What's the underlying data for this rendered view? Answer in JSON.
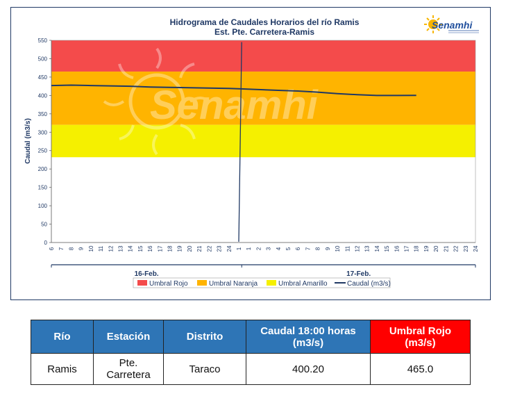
{
  "logo": {
    "text": "Senamhi"
  },
  "watermark": {
    "text": "Senamhi"
  },
  "chart_data": {
    "type": "line",
    "title": "Hidrograma de Caudales Horarios del río Ramis",
    "subtitle": "Est. Pte. Carretera-Ramis",
    "ylabel": "Caudal  (m3/s)",
    "ylim": [
      0,
      550
    ],
    "yticks": [
      0,
      50,
      100,
      150,
      200,
      250,
      300,
      350,
      400,
      450,
      500,
      550
    ],
    "x_tick_labels": [
      "6",
      "7",
      "8",
      "9",
      "10",
      "11",
      "12",
      "13",
      "14",
      "15",
      "16",
      "17",
      "18",
      "19",
      "20",
      "21",
      "22",
      "23",
      "24",
      "1",
      "1",
      "2",
      "3",
      "4",
      "5",
      "6",
      "7",
      "8",
      "9",
      "10",
      "11",
      "12",
      "13",
      "14",
      "15",
      "16",
      "17",
      "18",
      "19",
      "20",
      "21",
      "22",
      "23",
      "24"
    ],
    "date_labels": [
      "16-Feb.",
      "17-Feb."
    ],
    "bands": [
      {
        "name": "Umbral Rojo",
        "from": 465,
        "to": 550,
        "color": "#f44b4b"
      },
      {
        "name": "Umbral Naranja",
        "from": 320,
        "to": 465,
        "color": "#ffb400"
      },
      {
        "name": "Umbral Amarillo",
        "from": 232,
        "to": 320,
        "color": "#f5f000"
      }
    ],
    "series": [
      {
        "name": "Caudal (m3/s)",
        "color": "#1f3864",
        "points": [
          [
            0,
            427
          ],
          [
            2,
            428
          ],
          [
            4,
            427
          ],
          [
            6,
            426
          ],
          [
            8,
            425
          ],
          [
            10,
            423
          ],
          [
            12,
            422
          ],
          [
            14,
            421
          ],
          [
            16,
            420
          ],
          [
            18,
            419
          ],
          [
            19,
            418
          ],
          [
            21,
            416
          ],
          [
            23,
            414
          ],
          [
            25,
            412
          ],
          [
            27,
            409
          ],
          [
            29,
            405
          ],
          [
            31,
            402
          ],
          [
            33,
            400
          ],
          [
            35,
            400
          ],
          [
            37,
            400.2
          ]
        ]
      },
      {
        "name": "Caudal (m3/s)",
        "color": "#1f3864",
        "points": [
          [
            19,
            2
          ],
          [
            19.3,
            545
          ]
        ]
      }
    ],
    "legend": [
      "Umbral Rojo",
      "Umbral Naranja",
      "Umbral Amarillo",
      "Caudal (m3/s)"
    ],
    "legend_position": "bottom"
  },
  "table": {
    "headers": [
      "Río",
      "Estación",
      "Distrito",
      "Caudal  18:00 horas (m3/s)",
      "Umbral Rojo (m3/s)"
    ],
    "row": [
      "Ramis",
      "Pte. Carretera",
      "Taraco",
      "400.20",
      "465.0"
    ]
  }
}
